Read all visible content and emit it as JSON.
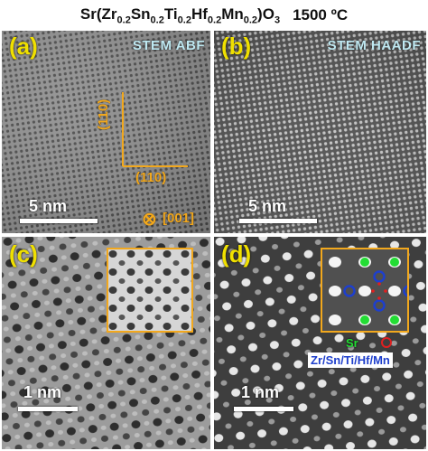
{
  "figure": {
    "title_formula_html": "Sr(Zr<sub>0.2</sub>Sn<sub>0.2</sub>Ti<sub>0.2</sub>Hf<sub>0.2</sub>Mn<sub>0.2</sub>)O<sub>3</sub>",
    "title_temperature": "1500 ºC"
  },
  "panels": {
    "a": {
      "label": "(a)",
      "mode": "STEM ABF",
      "scale": "5 nm",
      "dir_vertical": "(110)",
      "dir_horizontal": "(110)",
      "dir_zone": "[001]",
      "zone_symbol": "⊗"
    },
    "b": {
      "label": "(b)",
      "mode": "STEM HAADF",
      "scale": "5 nm"
    },
    "c": {
      "label": "(c)",
      "scale": "1 nm"
    },
    "d": {
      "label": "(d)",
      "scale": "1 nm",
      "legend_sr": "Sr",
      "legend_o_symbol": "O",
      "legend_b": "Zr/Sn/Ti/Hf/Mn"
    }
  },
  "colors": {
    "label_yellow": "#f0e000",
    "orientation_orange": "#f2a81d",
    "mode_text": "#bfe9f2",
    "sr_green": "#22dd33",
    "o_red": "#e02020",
    "b_blue": "#1e3fcc"
  }
}
